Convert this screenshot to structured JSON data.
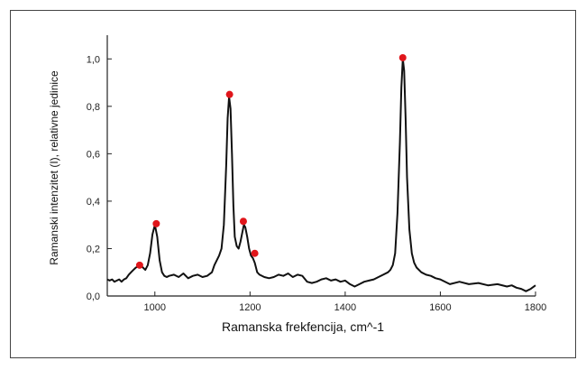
{
  "chart_data": {
    "type": "line",
    "xlabel": "Ramanska frekfencija, cm^-1",
    "ylabel": "Ramanski intenzitet (I), relativne jedinice",
    "xlim": [
      900,
      1800
    ],
    "ylim": [
      0,
      1.1
    ],
    "x_ticks": [
      1000,
      1200,
      1400,
      1600,
      1800
    ],
    "x_tick_labels": [
      "1000",
      "1200",
      "1400",
      "1600",
      "1800"
    ],
    "y_ticks": [
      0,
      0.2,
      0.4,
      0.6,
      0.8,
      1.0
    ],
    "y_tick_labels": [
      "0,0",
      "0,2",
      "0,4",
      "0,6",
      "0,8",
      "1,0"
    ],
    "grid": false,
    "colors": {
      "line": "#111111",
      "peak_marker": "#e0161b",
      "axis": "#222222"
    },
    "series": [
      {
        "x": [
          900,
          905,
          910,
          915,
          920,
          925,
          930,
          935,
          940,
          945,
          950,
          955,
          960,
          965,
          970,
          975,
          980,
          985,
          990,
          995,
          1000,
          1005,
          1010,
          1015,
          1020,
          1025,
          1030,
          1040,
          1050,
          1060,
          1070,
          1080,
          1090,
          1100,
          1110,
          1120,
          1125,
          1130,
          1135,
          1140,
          1145,
          1150,
          1153,
          1156,
          1159,
          1162,
          1165,
          1168,
          1172,
          1176,
          1180,
          1184,
          1187,
          1190,
          1194,
          1198,
          1202,
          1206,
          1210,
          1215,
          1220,
          1230,
          1240,
          1250,
          1260,
          1270,
          1280,
          1290,
          1300,
          1310,
          1320,
          1330,
          1340,
          1350,
          1360,
          1370,
          1380,
          1390,
          1400,
          1410,
          1420,
          1430,
          1440,
          1450,
          1460,
          1470,
          1480,
          1490,
          1495,
          1500,
          1505,
          1510,
          1515,
          1518,
          1521,
          1524,
          1527,
          1530,
          1535,
          1540,
          1545,
          1550,
          1560,
          1570,
          1580,
          1590,
          1600,
          1620,
          1640,
          1660,
          1680,
          1700,
          1720,
          1740,
          1750,
          1760,
          1770,
          1780,
          1790,
          1800
        ],
        "y": [
          0.07,
          0.065,
          0.07,
          0.06,
          0.065,
          0.07,
          0.06,
          0.07,
          0.075,
          0.09,
          0.1,
          0.11,
          0.12,
          0.125,
          0.13,
          0.12,
          0.11,
          0.13,
          0.18,
          0.26,
          0.3,
          0.25,
          0.15,
          0.1,
          0.085,
          0.08,
          0.085,
          0.09,
          0.08,
          0.095,
          0.075,
          0.085,
          0.09,
          0.08,
          0.085,
          0.1,
          0.13,
          0.15,
          0.17,
          0.2,
          0.3,
          0.55,
          0.75,
          0.84,
          0.79,
          0.6,
          0.38,
          0.25,
          0.21,
          0.2,
          0.23,
          0.27,
          0.3,
          0.29,
          0.25,
          0.2,
          0.17,
          0.16,
          0.14,
          0.1,
          0.09,
          0.08,
          0.075,
          0.08,
          0.09,
          0.085,
          0.095,
          0.08,
          0.09,
          0.085,
          0.06,
          0.055,
          0.06,
          0.07,
          0.075,
          0.065,
          0.07,
          0.06,
          0.065,
          0.05,
          0.04,
          0.05,
          0.06,
          0.065,
          0.07,
          0.08,
          0.09,
          0.1,
          0.11,
          0.13,
          0.18,
          0.35,
          0.65,
          0.88,
          1.0,
          0.95,
          0.75,
          0.5,
          0.28,
          0.18,
          0.14,
          0.12,
          0.1,
          0.09,
          0.085,
          0.075,
          0.07,
          0.05,
          0.06,
          0.05,
          0.055,
          0.045,
          0.05,
          0.04,
          0.045,
          0.035,
          0.03,
          0.02,
          0.03,
          0.045
        ]
      }
    ],
    "peaks": [
      {
        "x": 968,
        "y": 0.13
      },
      {
        "x": 1003,
        "y": 0.305
      },
      {
        "x": 1157,
        "y": 0.85
      },
      {
        "x": 1186,
        "y": 0.315
      },
      {
        "x": 1210,
        "y": 0.18
      },
      {
        "x": 1521,
        "y": 1.005
      }
    ]
  }
}
